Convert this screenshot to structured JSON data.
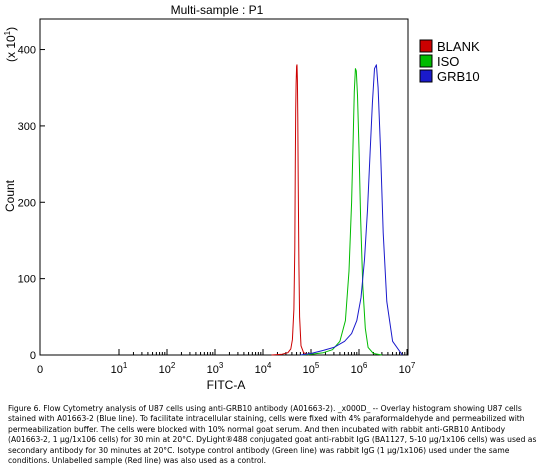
{
  "chart_data": {
    "type": "line",
    "title": "Multi-sample : P1",
    "xlabel": "FITC-A",
    "ylabel": "Count",
    "y_multiplier": "(x 10^1)",
    "xscale": "log",
    "xlim": [
      0,
      10000000
    ],
    "ylim": [
      0,
      440
    ],
    "x_ticks": [
      {
        "value": 0,
        "base": "0",
        "exp": ""
      },
      {
        "value": 10,
        "base": "10",
        "exp": "1"
      },
      {
        "value": 100,
        "base": "10",
        "exp": "2"
      },
      {
        "value": 1000,
        "base": "10",
        "exp": "3"
      },
      {
        "value": 10000,
        "base": "10",
        "exp": "4"
      },
      {
        "value": 100000,
        "base": "10",
        "exp": "5"
      },
      {
        "value": 1000000,
        "base": "10",
        "exp": "6"
      },
      {
        "value": 10000000,
        "base": "10",
        "exp": "7"
      }
    ],
    "y_ticks": [
      0,
      100,
      200,
      300,
      400
    ],
    "legend_position": "top-right, outside plot",
    "series": [
      {
        "name": "BLANK",
        "color": "#cc0000",
        "x": [
          15000,
          25000,
          33000,
          38000,
          41000,
          44000,
          46000,
          47000,
          48000,
          49000,
          50000,
          51000,
          52000,
          53000,
          54000,
          56000,
          58000,
          62000,
          70000,
          90000
        ],
        "y": [
          0,
          1,
          3,
          8,
          20,
          60,
          140,
          250,
          320,
          355,
          378,
          380,
          360,
          310,
          230,
          120,
          50,
          12,
          3,
          0
        ]
      },
      {
        "name": "ISO",
        "color": "#00bb00",
        "x": [
          60000,
          100000,
          180000,
          280000,
          400000,
          520000,
          620000,
          700000,
          760000,
          800000,
          840000,
          880000,
          930000,
          1000000,
          1080000,
          1200000,
          1350000,
          1550000,
          2000000,
          3000000
        ],
        "y": [
          0,
          1,
          3,
          7,
          18,
          45,
          110,
          200,
          290,
          345,
          375,
          372,
          340,
          270,
          180,
          90,
          35,
          10,
          2,
          0
        ]
      },
      {
        "name": "GRB10",
        "color": "#1a1acc",
        "x": [
          60000,
          100000,
          180000,
          300000,
          500000,
          700000,
          900000,
          1100000,
          1300000,
          1500000,
          1700000,
          1900000,
          2100000,
          2300000,
          2500000,
          2800000,
          3200000,
          3800000,
          5000000,
          8000000
        ],
        "y": [
          0,
          2,
          6,
          10,
          18,
          28,
          45,
          75,
          125,
          190,
          265,
          330,
          375,
          380,
          350,
          270,
          160,
          70,
          18,
          0
        ]
      }
    ]
  },
  "caption": "Figure 6. Flow Cytometry analysis of U87 cells using anti-GRB10 antibody (A01663-2). _x000D_ -- Overlay histogram showing U87 cells stained with A01663-2 (Blue line). To facilitate intracellular staining, cells were fixed with 4% paraformaldehyde and permeabilized with permeabilization buffer. The cells were blocked with 10% normal goat serum. And then incubated with rabbit anti-GRB10 Antibody (A01663-2, 1 μg/1x106 cells) for 30 min at 20°C. DyLight®488 conjugated goat anti-rabbit IgG (BA1127, 5-10 μg/1x106 cells) was used as secondary antibody for 30 minutes at 20°C. Isotype control antibody (Green line) was rabbit IgG (1 μg/1x106) used under the same conditions. Unlabelled sample (Red line) was also used as a control."
}
